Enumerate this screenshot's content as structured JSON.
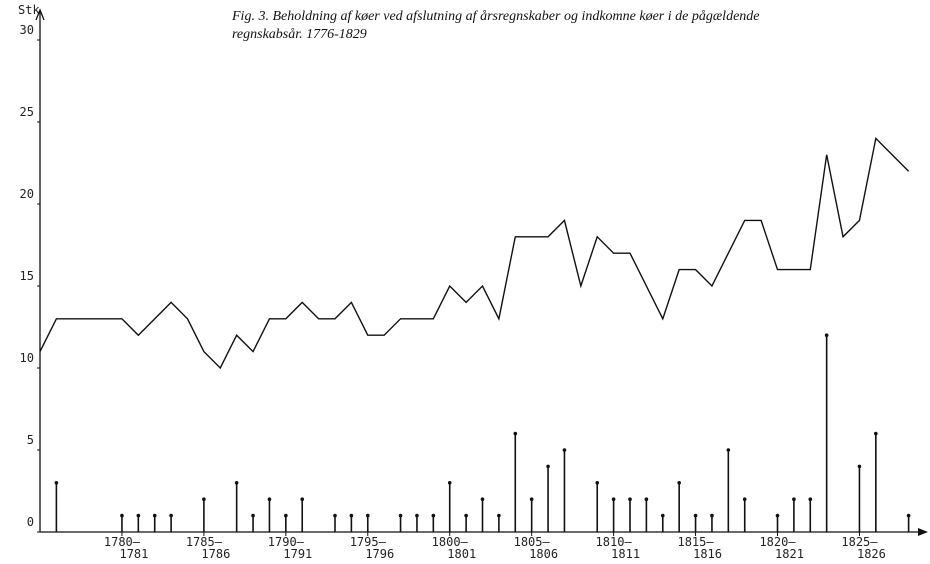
{
  "chart_data": {
    "type": "line",
    "title": [
      "Fig. 3. Beholdning af køer ved afslutning af årsregnskaber og indkomne køer i de pågældende",
      "regnskabsår. 1776-1829"
    ],
    "y_label": "Stk",
    "xlim": [
      1775,
      1829
    ],
    "ylim": [
      0,
      30
    ],
    "yticks": [
      0,
      5,
      10,
      15,
      20,
      25,
      30
    ],
    "xticks": [
      1780,
      1785,
      1790,
      1795,
      1800,
      1805,
      1810,
      1815,
      1820,
      1825
    ],
    "xtick_labels": [
      [
        "1780–",
        "1781"
      ],
      [
        "1785–",
        "1786"
      ],
      [
        "1790–",
        "1791"
      ],
      [
        "1795–",
        "1796"
      ],
      [
        "1800–",
        "1801"
      ],
      [
        "1805–",
        "1806"
      ],
      [
        "1810–",
        "1811"
      ],
      [
        "1815–",
        "1816"
      ],
      [
        "1820–",
        "1821"
      ],
      [
        "1825–",
        "1826"
      ]
    ],
    "series": [
      {
        "type": "line",
        "color": "#111111",
        "x": [
          1775,
          1776,
          1780,
          1781,
          1783,
          1784,
          1785,
          1786,
          1787,
          1788,
          1789,
          1790,
          1791,
          1792,
          1793,
          1794,
          1795,
          1796,
          1797,
          1798,
          1799,
          1800,
          1801,
          1802,
          1803,
          1804,
          1805,
          1806,
          1807,
          1808,
          1809,
          1810,
          1811,
          1813,
          1814,
          1815,
          1816,
          1818,
          1819,
          1820,
          1821,
          1822,
          1823,
          1824,
          1825,
          1826,
          1828
        ],
        "values": [
          11,
          13,
          13,
          12,
          14,
          13,
          11,
          10,
          12,
          11,
          13,
          13,
          14,
          13,
          13,
          14,
          12,
          12,
          13,
          13,
          13,
          15,
          14,
          15,
          13,
          18,
          18,
          18,
          19,
          15,
          18,
          17,
          17,
          13,
          16,
          16,
          15,
          19,
          19,
          16,
          16,
          16,
          23,
          18,
          19,
          24,
          22
        ]
      },
      {
        "type": "stem",
        "color": "#111111",
        "x": [
          1776,
          1780,
          1781,
          1782,
          1783,
          1785,
          1787,
          1788,
          1789,
          1790,
          1791,
          1793,
          1794,
          1795,
          1797,
          1798,
          1799,
          1800,
          1801,
          1802,
          1803,
          1804,
          1805,
          1806,
          1807,
          1809,
          1810,
          1811,
          1812,
          1813,
          1814,
          1815,
          1816,
          1817,
          1818,
          1820,
          1821,
          1822,
          1823,
          1825,
          1826,
          1828
        ],
        "values": [
          3,
          1,
          1,
          1,
          1,
          2,
          3,
          1,
          2,
          1,
          2,
          1,
          1,
          1,
          1,
          1,
          1,
          3,
          1,
          2,
          1,
          6,
          2,
          4,
          5,
          3,
          2,
          2,
          2,
          1,
          3,
          1,
          1,
          5,
          2,
          1,
          2,
          2,
          12,
          4,
          6,
          1
        ]
      }
    ]
  }
}
